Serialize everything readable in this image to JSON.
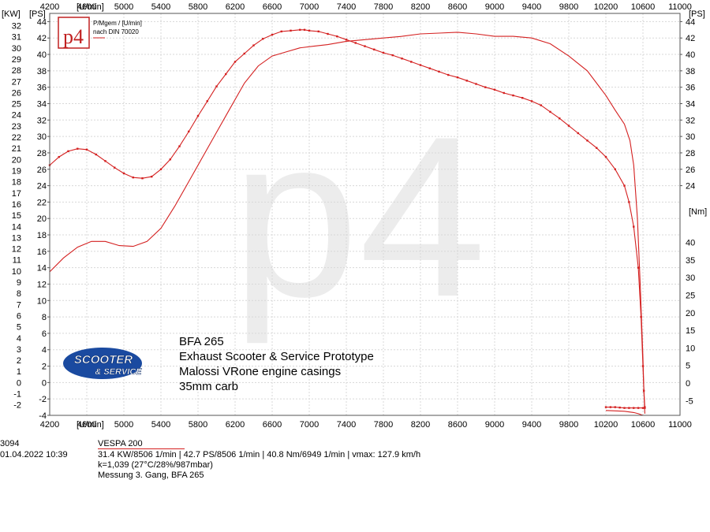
{
  "chart_data": {
    "type": "line",
    "x_unit": "[U/min]",
    "xlim": [
      4200,
      11000
    ],
    "x_ticks": [
      4200,
      4600,
      5000,
      5400,
      5800,
      6200,
      6600,
      7000,
      7400,
      7800,
      8200,
      8600,
      9000,
      9400,
      9800,
      10200,
      10600,
      11000
    ],
    "y_left_kw": {
      "unit": "[KW]",
      "ticks": [
        -2,
        -1,
        0,
        1,
        2,
        3,
        4,
        5,
        6,
        7,
        8,
        9,
        10,
        11,
        12,
        13,
        14,
        15,
        16,
        17,
        18,
        19,
        20,
        21,
        22,
        23,
        24,
        25,
        26,
        27,
        28,
        29,
        30,
        31,
        32
      ]
    },
    "y_left_ps": {
      "unit": "[PS]",
      "ylim": [
        -4,
        45
      ],
      "ticks": [
        -4,
        -2,
        0,
        2,
        4,
        6,
        8,
        10,
        12,
        14,
        16,
        18,
        20,
        22,
        24,
        26,
        28,
        30,
        32,
        34,
        36,
        38,
        40,
        42,
        44
      ]
    },
    "y_right_ps": {
      "unit": "[PS]",
      "ticks": [
        24,
        26,
        28,
        30,
        32,
        34,
        36,
        38,
        40,
        42,
        44
      ]
    },
    "y_right_nm": {
      "unit": "[Nm]",
      "ticks": [
        -5,
        0,
        5,
        10,
        15,
        20,
        25,
        30,
        35,
        40
      ]
    },
    "series": [
      {
        "role": "power",
        "color": "#d42020",
        "x": [
          4200,
          4350,
          4500,
          4650,
          4800,
          4950,
          5100,
          5250,
          5400,
          5550,
          5700,
          5850,
          6000,
          6150,
          6300,
          6450,
          6600,
          6750,
          6900,
          7050,
          7200,
          7400,
          7600,
          7800,
          8000,
          8200,
          8400,
          8600,
          8800,
          9000,
          9200,
          9400,
          9600,
          9800,
          10000,
          10200,
          10300,
          10400,
          10460,
          10500,
          10540,
          10570,
          10600,
          10610,
          10620
        ],
        "values": [
          13.5,
          15.2,
          16.5,
          17.2,
          17.2,
          16.7,
          16.6,
          17.2,
          18.8,
          21.5,
          24.5,
          27.5,
          30.5,
          33.5,
          36.5,
          38.6,
          39.8,
          40.3,
          40.8,
          41.0,
          41.2,
          41.6,
          41.8,
          42.0,
          42.2,
          42.5,
          42.6,
          42.7,
          42.5,
          42.2,
          42.2,
          42.0,
          41.3,
          39.8,
          38.0,
          35.0,
          33.2,
          31.5,
          29.5,
          26.5,
          20.0,
          12.0,
          3.0,
          -1.0,
          -3.8
        ]
      },
      {
        "role": "torque",
        "color": "#d42020",
        "markers": true,
        "x": [
          4200,
          4300,
          4400,
          4500,
          4600,
          4700,
          4800,
          4900,
          5000,
          5100,
          5200,
          5300,
          5400,
          5500,
          5600,
          5700,
          5800,
          5900,
          6000,
          6100,
          6200,
          6300,
          6400,
          6500,
          6600,
          6700,
          6800,
          6900,
          6949,
          7000,
          7100,
          7200,
          7300,
          7400,
          7500,
          7600,
          7700,
          7800,
          7900,
          8000,
          8100,
          8200,
          8300,
          8400,
          8500,
          8600,
          8700,
          8800,
          8900,
          9000,
          9100,
          9200,
          9300,
          9400,
          9500,
          9600,
          9700,
          9800,
          9900,
          10000,
          10100,
          10200,
          10300,
          10400,
          10450,
          10500,
          10550,
          10580,
          10600,
          10610,
          10620
        ],
        "values": [
          26.5,
          27.5,
          28.2,
          28.5,
          28.4,
          27.8,
          27.0,
          26.2,
          25.5,
          25.0,
          24.9,
          25.1,
          26.0,
          27.2,
          28.8,
          30.6,
          32.5,
          34.3,
          36.1,
          37.6,
          39.1,
          40.1,
          41.1,
          41.9,
          42.4,
          42.8,
          42.9,
          43.0,
          43.0,
          42.9,
          42.8,
          42.5,
          42.2,
          41.8,
          41.4,
          41.0,
          40.6,
          40.2,
          39.9,
          39.5,
          39.1,
          38.7,
          38.3,
          37.9,
          37.5,
          37.2,
          36.8,
          36.4,
          36.0,
          35.7,
          35.3,
          35.0,
          34.7,
          34.3,
          33.8,
          33.0,
          32.2,
          31.3,
          30.4,
          29.5,
          28.6,
          27.5,
          26.0,
          24.0,
          22.0,
          19.0,
          14.0,
          8.0,
          2.0,
          -1.0,
          -3.0
        ]
      },
      {
        "role": "loss",
        "color": "#d42020",
        "markers": true,
        "x": [
          10200,
          10250,
          10300,
          10350,
          10400,
          10450,
          10500,
          10550,
          10600,
          10620
        ],
        "values": [
          -3.0,
          -3.0,
          -3.0,
          -3.05,
          -3.1,
          -3.1,
          -3.1,
          -3.1,
          -3.1,
          -3.1
        ]
      },
      {
        "role": "loss2",
        "color": "#d42020",
        "x": [
          10200,
          10300,
          10400,
          10500,
          10550,
          10600,
          10620
        ],
        "values": [
          -3.4,
          -3.45,
          -3.5,
          -3.65,
          -3.8,
          -4.0,
          -4.0
        ]
      }
    ]
  },
  "logo": {
    "text": "p4",
    "legend_line1": "P/Mgem / [U/min]",
    "legend_line2": "nach DIN 70020"
  },
  "watermark": "p4",
  "annotation": {
    "line1": "BFA 265",
    "line2": "Exhaust Scooter & Service Prototype",
    "line3": "Malossi VRone engine casings",
    "line4": "35mm carb"
  },
  "brand_logo": {
    "line1": "SCOOTER",
    "line2": "& SERVICE"
  },
  "footer": {
    "id": "3094",
    "vehicle": "VESPA 200",
    "date": "01.04.2022  10:39",
    "summary": "31.4 KW/8506 1/min  |  42.7 PS/8506 1/min  |  40.8 Nm/6949 1/min | vmax: 127.9 km/h",
    "correction": "k=1,039 (27°C/28%/987mbar)",
    "measurement": "Messung 3. Gang, BFA 265"
  }
}
